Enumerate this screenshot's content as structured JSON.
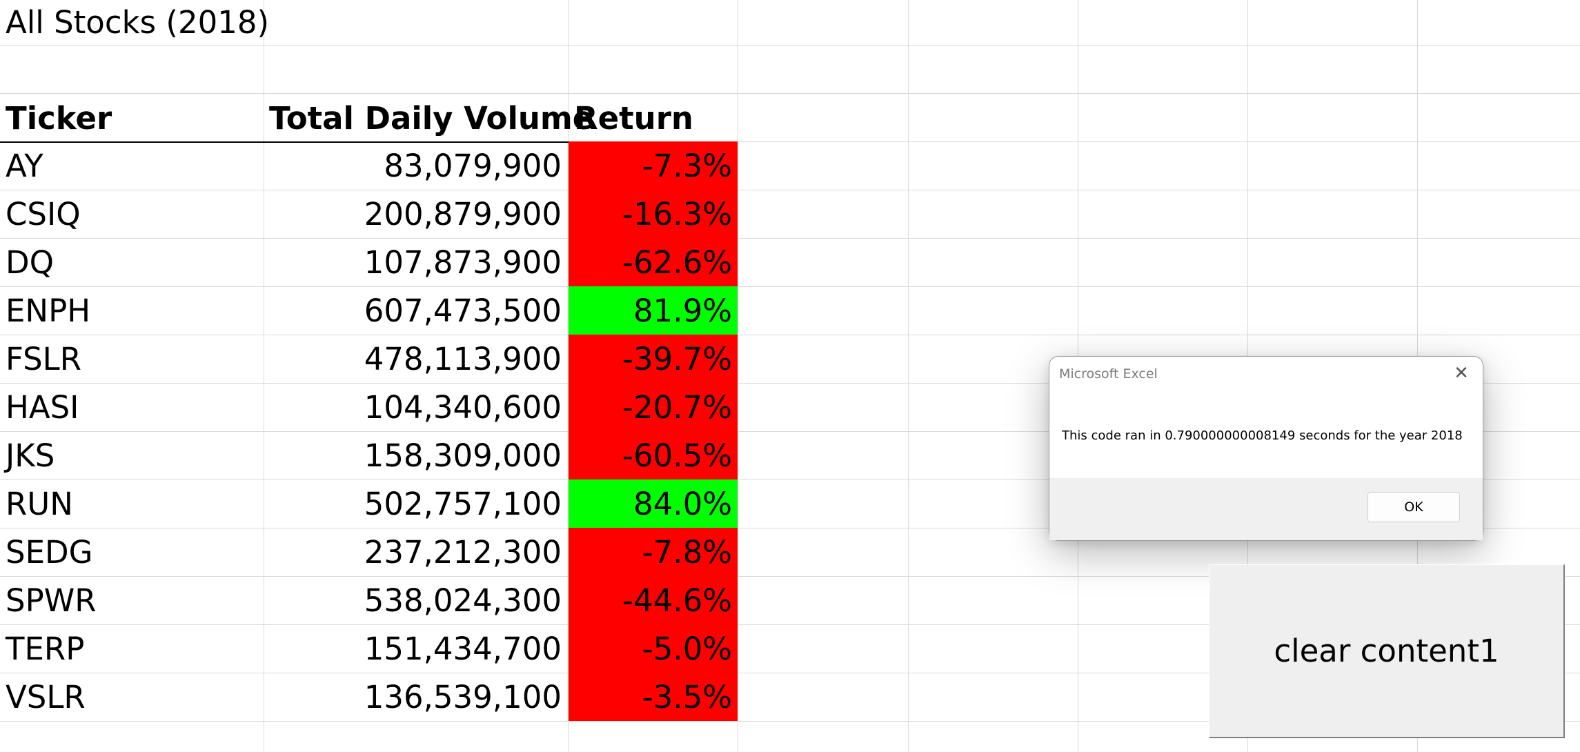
{
  "sheet": {
    "title": "All Stocks (2018)",
    "headers": {
      "ticker": "Ticker",
      "volume": "Total Daily Volume",
      "return": "Return"
    },
    "rows": [
      {
        "ticker": "AY",
        "volume": "83,079,900",
        "return": "-7.3%",
        "status": "negative"
      },
      {
        "ticker": "CSIQ",
        "volume": "200,879,900",
        "return": "-16.3%",
        "status": "negative"
      },
      {
        "ticker": "DQ",
        "volume": "107,873,900",
        "return": "-62.6%",
        "status": "negative"
      },
      {
        "ticker": "ENPH",
        "volume": "607,473,500",
        "return": "81.9%",
        "status": "positive"
      },
      {
        "ticker": "FSLR",
        "volume": "478,113,900",
        "return": "-39.7%",
        "status": "negative"
      },
      {
        "ticker": "HASI",
        "volume": "104,340,600",
        "return": "-20.7%",
        "status": "negative"
      },
      {
        "ticker": "JKS",
        "volume": "158,309,000",
        "return": "-60.5%",
        "status": "negative"
      },
      {
        "ticker": "RUN",
        "volume": "502,757,100",
        "return": "84.0%",
        "status": "positive"
      },
      {
        "ticker": "SEDG",
        "volume": "237,212,300",
        "return": "-7.8%",
        "status": "negative"
      },
      {
        "ticker": "SPWR",
        "volume": "538,024,300",
        "return": "-44.6%",
        "status": "negative"
      },
      {
        "ticker": "TERP",
        "volume": "151,434,700",
        "return": "-5.0%",
        "status": "negative"
      },
      {
        "ticker": "VSLR",
        "volume": "136,539,100",
        "return": "-3.5%",
        "status": "negative"
      }
    ]
  },
  "colors": {
    "negative": "#ff0000",
    "positive": "#00ff00",
    "gridline": "#d9d9d9"
  },
  "dialog": {
    "title": "Microsoft Excel",
    "message": "This code ran in 0.790000000008149 seconds for the year 2018",
    "ok_label": "OK",
    "close_icon": "close-icon"
  },
  "buttons": {
    "clear_label": "clear content1"
  }
}
